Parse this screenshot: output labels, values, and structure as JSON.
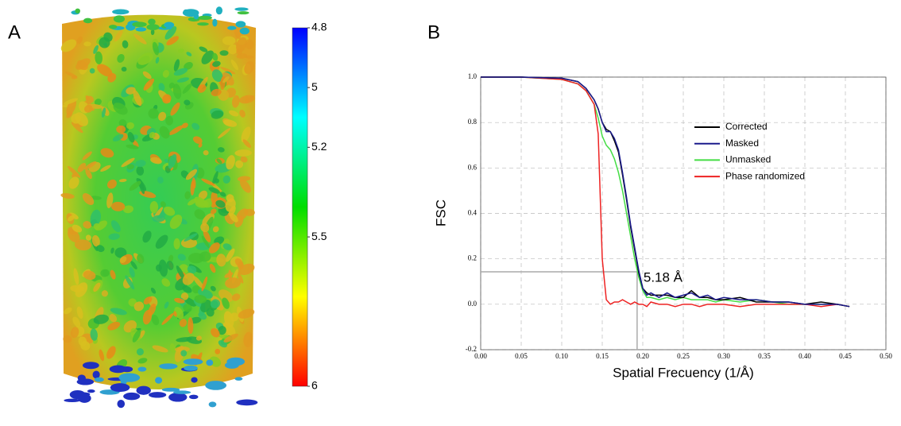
{
  "chart_data": [
    {
      "type": "colorbar",
      "panel": "A",
      "ylim": [
        6,
        4.8
      ],
      "yticks": [
        4.8,
        5,
        5.2,
        5.5,
        6
      ],
      "colors": [
        "#ff0000",
        "#ffff00",
        "#00dd00",
        "#00ffff",
        "#0000ff"
      ]
    },
    {
      "type": "line",
      "panel": "B",
      "ylabel": "FSC",
      "xlabel": "Spatial Frecuency (1/Å)",
      "xlim": [
        0,
        0.5
      ],
      "ylim": [
        -0.2,
        1.0
      ],
      "grid": true,
      "legend": "upper right",
      "xticks": [
        {
          "value": 0,
          "label": "0.00"
        },
        0.05,
        {
          "value": 0.1,
          "label": "0.10"
        },
        0.15,
        {
          "value": 0.2,
          "label": "0.20"
        },
        0.25,
        {
          "value": 0.3,
          "label": "0.30"
        },
        0.35,
        {
          "value": 0.4,
          "label": "0.40"
        },
        0.45,
        {
          "value": 0.5,
          "label": "0.50"
        }
      ],
      "yticks": [
        -0.2,
        {
          "value": 0,
          "label": "0.0"
        },
        0.2,
        0.4,
        0.6,
        0.8,
        {
          "value": 1,
          "label": "1.0"
        }
      ],
      "x": [
        0,
        0.05,
        0.1,
        0.12,
        0.13,
        0.14,
        0.145,
        0.15,
        0.155,
        0.16,
        0.165,
        0.17,
        0.175,
        0.18,
        0.185,
        0.19,
        0.195,
        0.2,
        0.205,
        0.21,
        0.22,
        0.23,
        0.24,
        0.25,
        0.26,
        0.27,
        0.28,
        0.29,
        0.3,
        0.32,
        0.34,
        0.36,
        0.38,
        0.4,
        0.42,
        0.44,
        0.455
      ],
      "series": [
        {
          "name": "Corrected",
          "color": "#000000",
          "values": [
            1.0,
            1.0,
            0.995,
            0.98,
            0.95,
            0.9,
            0.86,
            0.8,
            0.77,
            0.76,
            0.72,
            0.67,
            0.57,
            0.46,
            0.34,
            0.24,
            0.14,
            0.07,
            0.05,
            0.04,
            0.04,
            0.04,
            0.03,
            0.03,
            0.06,
            0.03,
            0.03,
            0.02,
            0.02,
            0.03,
            0.01,
            0.01,
            0.01,
            0.0,
            0.01,
            0.0,
            -0.01
          ]
        },
        {
          "name": "Masked",
          "color": "#1a1a8c",
          "values": [
            1.0,
            1.0,
            0.995,
            0.98,
            0.95,
            0.9,
            0.86,
            0.8,
            0.76,
            0.76,
            0.73,
            0.68,
            0.58,
            0.47,
            0.35,
            0.25,
            0.15,
            0.07,
            0.04,
            0.05,
            0.03,
            0.05,
            0.03,
            0.04,
            0.05,
            0.03,
            0.04,
            0.02,
            0.03,
            0.02,
            0.02,
            0.01,
            0.01,
            0.0,
            0.0,
            0.0,
            -0.01
          ]
        },
        {
          "name": "Unmasked",
          "color": "#44dd44",
          "values": [
            1.0,
            1.0,
            0.99,
            0.97,
            0.94,
            0.88,
            0.82,
            0.74,
            0.7,
            0.68,
            0.64,
            0.58,
            0.5,
            0.4,
            0.3,
            0.2,
            0.12,
            0.06,
            0.03,
            0.03,
            0.02,
            0.03,
            0.02,
            0.03,
            0.02,
            0.02,
            0.02,
            0.01,
            0.02,
            0.01,
            0.02,
            0.01,
            0.0,
            0.0,
            0.0,
            0.0,
            -0.01
          ]
        },
        {
          "name": "Phase randomized",
          "color": "#ee2222",
          "values": [
            1.0,
            1.0,
            0.99,
            0.97,
            0.94,
            0.88,
            0.75,
            0.2,
            0.02,
            0.0,
            0.01,
            0.01,
            0.02,
            0.01,
            0.0,
            0.01,
            0.0,
            0.0,
            -0.01,
            0.01,
            0.0,
            0.0,
            -0.01,
            0.0,
            0.0,
            -0.01,
            0.0,
            0.0,
            0.0,
            -0.01,
            0.0,
            0.0,
            0.0,
            0.0,
            -0.01,
            0.0,
            -0.01
          ]
        }
      ],
      "annotation": {
        "text": "5.18 Å",
        "x": 0.193,
        "y": 0.143
      }
    }
  ]
}
